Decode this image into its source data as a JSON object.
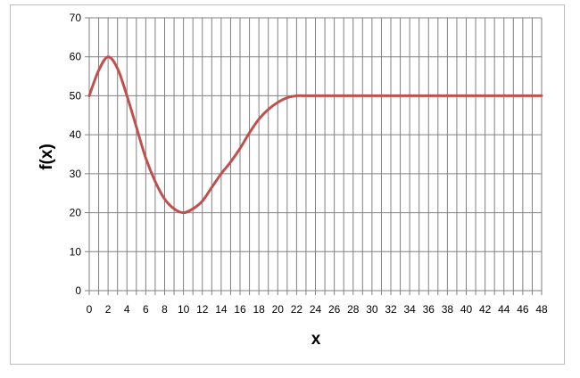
{
  "chart_data": {
    "type": "line",
    "title": "",
    "xlabel": "x",
    "ylabel": "f(x)",
    "xlim": [
      0,
      48
    ],
    "ylim": [
      0,
      70
    ],
    "xticks": [
      0,
      2,
      4,
      6,
      8,
      10,
      12,
      14,
      16,
      18,
      20,
      22,
      24,
      26,
      28,
      30,
      32,
      34,
      36,
      38,
      40,
      42,
      44,
      46,
      48
    ],
    "yticks": [
      0,
      10,
      20,
      30,
      40,
      50,
      60,
      70
    ],
    "grid": true,
    "legend": "none",
    "line_color": "#c0504d",
    "grid_color": "#808080",
    "series": [
      {
        "x": [
          0,
          1,
          2,
          3,
          4,
          5,
          6,
          7,
          8,
          9,
          10,
          11,
          12,
          13,
          14,
          15,
          16,
          17,
          18,
          19,
          20,
          21,
          22,
          23,
          24,
          30,
          36,
          42,
          48
        ],
        "values": [
          50,
          56.5,
          60,
          57,
          50,
          42,
          34,
          28,
          23.5,
          21,
          20,
          21,
          23,
          26.5,
          30,
          33,
          36.5,
          40.5,
          44,
          46.5,
          48.3,
          49.5,
          50,
          50,
          50,
          50,
          50,
          50,
          50
        ]
      }
    ]
  }
}
